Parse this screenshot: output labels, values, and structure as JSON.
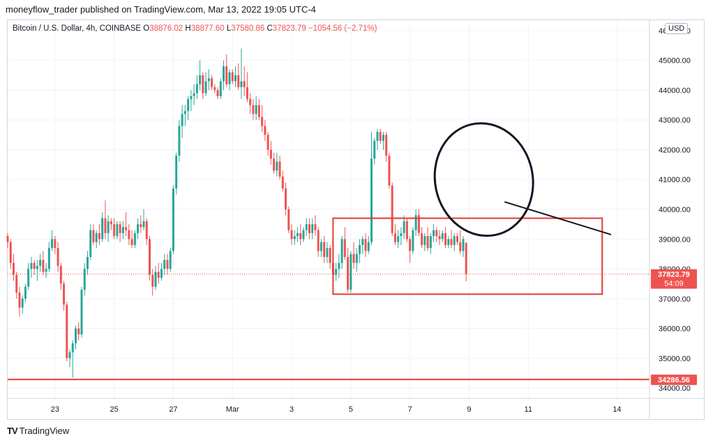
{
  "header": {
    "publisher_text": "moneyflow_trader published on TradingView.com, Mar 13, 2022 19:05 UTC-4"
  },
  "legend": {
    "symbol": "Bitcoin / U.S. Dollar, 4h, COINBASE",
    "open_label": "O",
    "open": "38876.02",
    "high_label": "H",
    "high": "38877.60",
    "low_label": "L",
    "low": "37580.86",
    "close_label": "C",
    "close": "37823.79",
    "change": "−1054.56 (−2.71%)"
  },
  "currency_badge": "USD",
  "footer": {
    "brand_logo": "TV",
    "brand_text": "TradingView"
  },
  "colors": {
    "up": "#26a69a",
    "down": "#ef5350",
    "grid": "#f0f3fa",
    "price_tag": "#ef5350",
    "support_line": "#e53935",
    "annotation": "#131722"
  },
  "chart_data": {
    "type": "candlestick",
    "title": "Bitcoin / U.S. Dollar, 4h, COINBASE",
    "xlabel": "",
    "ylabel": "USD",
    "ylim": [
      33650,
      46350
    ],
    "y_ticks": [
      34000,
      35000,
      36000,
      37000,
      38000,
      39000,
      40000,
      41000,
      42000,
      43000,
      44000,
      45000,
      46000
    ],
    "y_tick_labels": [
      "34000.00",
      "35000.00",
      "36000.00",
      "37000.00",
      "38000.00",
      "39000.00",
      "40000.00",
      "41000.00",
      "42000.00",
      "43000.00",
      "44000.00",
      "45000.00",
      "46000.00"
    ],
    "x_ticks": [
      {
        "label": "23",
        "index": 16
      },
      {
        "label": "25",
        "index": 36
      },
      {
        "label": "27",
        "index": 56
      },
      {
        "label": "Mar",
        "index": 76
      },
      {
        "label": "3",
        "index": 96
      },
      {
        "label": "5",
        "index": 116
      },
      {
        "label": "7",
        "index": 136
      },
      {
        "label": "9",
        "index": 156
      },
      {
        "label": "11",
        "index": 176
      },
      {
        "label": "14",
        "index": 206
      }
    ],
    "candles": [
      [
        39100,
        39200,
        38700,
        38900
      ],
      [
        38900,
        39000,
        38000,
        38200
      ],
      [
        38200,
        38500,
        37600,
        37800
      ],
      [
        37800,
        37900,
        37000,
        37200
      ],
      [
        37200,
        37400,
        36400,
        36700
      ],
      [
        36700,
        37100,
        36500,
        37000
      ],
      [
        37000,
        37500,
        36900,
        37400
      ],
      [
        37400,
        38200,
        37300,
        38000
      ],
      [
        38000,
        38400,
        37700,
        38200
      ],
      [
        38200,
        38300,
        37800,
        38000
      ],
      [
        38000,
        38300,
        37600,
        38100
      ],
      [
        38100,
        38500,
        37900,
        38300
      ],
      [
        38300,
        38600,
        37800,
        37900
      ],
      [
        37900,
        38200,
        37700,
        38000
      ],
      [
        38000,
        38900,
        37900,
        38700
      ],
      [
        38700,
        39300,
        38600,
        39000
      ],
      [
        39000,
        39100,
        38500,
        38700
      ],
      [
        38700,
        38900,
        37900,
        38100
      ],
      [
        38100,
        38200,
        37300,
        37500
      ],
      [
        37500,
        37600,
        36600,
        36800
      ],
      [
        36800,
        36900,
        34900,
        35000
      ],
      [
        35000,
        35300,
        34700,
        35200
      ],
      [
        35200,
        35600,
        34350,
        35500
      ],
      [
        35500,
        36100,
        35300,
        36000
      ],
      [
        36000,
        36200,
        35600,
        35800
      ],
      [
        35800,
        37400,
        35700,
        37300
      ],
      [
        37300,
        38200,
        37100,
        38000
      ],
      [
        38000,
        38600,
        37800,
        38400
      ],
      [
        38400,
        39500,
        38300,
        39300
      ],
      [
        39300,
        39500,
        38800,
        38900
      ],
      [
        38900,
        39300,
        38700,
        39200
      ],
      [
        39200,
        39500,
        38800,
        39000
      ],
      [
        39000,
        39900,
        38900,
        39700
      ],
      [
        39700,
        40300,
        39000,
        39200
      ],
      [
        39200,
        39800,
        38900,
        39600
      ],
      [
        39600,
        39700,
        39300,
        39500
      ],
      [
        39500,
        39700,
        39000,
        39100
      ],
      [
        39100,
        39600,
        39000,
        39500
      ],
      [
        39500,
        39600,
        38900,
        39200
      ],
      [
        39200,
        39600,
        39000,
        39400
      ],
      [
        39400,
        39900,
        39100,
        39300
      ],
      [
        39300,
        39500,
        38800,
        39000
      ],
      [
        39000,
        39300,
        38700,
        38800
      ],
      [
        38800,
        39300,
        38700,
        39200
      ],
      [
        39200,
        39700,
        39000,
        39500
      ],
      [
        39500,
        39800,
        39200,
        39400
      ],
      [
        39400,
        40000,
        39300,
        39600
      ],
      [
        39600,
        39700,
        38800,
        39000
      ],
      [
        39000,
        39100,
        37600,
        37800
      ],
      [
        37800,
        38000,
        37100,
        37400
      ],
      [
        37400,
        38100,
        37300,
        37900
      ],
      [
        37900,
        38200,
        37500,
        37700
      ],
      [
        37700,
        38200,
        37600,
        38000
      ],
      [
        38000,
        38500,
        37800,
        38300
      ],
      [
        38300,
        38500,
        37800,
        38000
      ],
      [
        38000,
        38700,
        37900,
        38600
      ],
      [
        38600,
        40800,
        38500,
        40700
      ],
      [
        40700,
        41900,
        40500,
        41800
      ],
      [
        41800,
        43000,
        41600,
        42800
      ],
      [
        42800,
        43500,
        42400,
        43200
      ],
      [
        43200,
        43500,
        42800,
        43300
      ],
      [
        43300,
        43800,
        43000,
        43700
      ],
      [
        43700,
        44000,
        43300,
        43800
      ],
      [
        43800,
        44200,
        43500,
        43900
      ],
      [
        43900,
        44500,
        43700,
        44200
      ],
      [
        44200,
        45000,
        44000,
        44500
      ],
      [
        44500,
        44600,
        43700,
        43900
      ],
      [
        43900,
        44600,
        43800,
        44300
      ],
      [
        44300,
        44700,
        44000,
        44400
      ],
      [
        44400,
        44500,
        44000,
        44100
      ],
      [
        44100,
        44200,
        43900,
        44000
      ],
      [
        44000,
        44100,
        43700,
        43800
      ],
      [
        43800,
        44400,
        43700,
        44300
      ],
      [
        44300,
        45000,
        44000,
        44800
      ],
      [
        44800,
        45200,
        44100,
        44200
      ],
      [
        44200,
        44700,
        44000,
        44600
      ],
      [
        44600,
        44700,
        44200,
        44300
      ],
      [
        44300,
        44800,
        44100,
        44500
      ],
      [
        44500,
        44900,
        44000,
        44100
      ],
      [
        44100,
        45400,
        43700,
        44300
      ],
      [
        44300,
        44800,
        43800,
        44100
      ],
      [
        44100,
        44600,
        43600,
        43700
      ],
      [
        43700,
        43900,
        43200,
        43500
      ],
      [
        43500,
        43700,
        43000,
        43200
      ],
      [
        43200,
        43800,
        43000,
        43500
      ],
      [
        43500,
        43700,
        43000,
        43100
      ],
      [
        43100,
        43500,
        42600,
        42800
      ],
      [
        42800,
        43000,
        42300,
        42500
      ],
      [
        42500,
        42600,
        41800,
        42000
      ],
      [
        42000,
        42300,
        41500,
        41700
      ],
      [
        41700,
        41900,
        41200,
        41300
      ],
      [
        41300,
        41900,
        41100,
        41600
      ],
      [
        41600,
        41800,
        41000,
        41100
      ],
      [
        41100,
        41300,
        40600,
        40700
      ],
      [
        40700,
        40900,
        39800,
        40000
      ],
      [
        40000,
        40100,
        39200,
        39300
      ],
      [
        39300,
        39500,
        38800,
        39000
      ],
      [
        39000,
        39300,
        38800,
        39100
      ],
      [
        39100,
        39400,
        38900,
        39200
      ],
      [
        39200,
        39500,
        38800,
        39000
      ],
      [
        39000,
        39400,
        38900,
        39300
      ],
      [
        39300,
        39700,
        39100,
        39500
      ],
      [
        39500,
        39700,
        39000,
        39200
      ],
      [
        39200,
        39700,
        39000,
        39500
      ],
      [
        39500,
        39800,
        39100,
        39300
      ],
      [
        39300,
        39400,
        38400,
        38600
      ],
      [
        38600,
        39000,
        38400,
        38900
      ],
      [
        38900,
        39100,
        38200,
        38400
      ],
      [
        38400,
        38900,
        38200,
        38700
      ],
      [
        38700,
        38800,
        38000,
        38200
      ],
      [
        38200,
        38400,
        37600,
        37800
      ],
      [
        37800,
        38200,
        37600,
        38000
      ],
      [
        38000,
        38500,
        37700,
        38200
      ],
      [
        38200,
        39100,
        38000,
        39000
      ],
      [
        39000,
        39400,
        38300,
        38400
      ],
      [
        38400,
        38700,
        37200,
        37300
      ],
      [
        37300,
        38600,
        37200,
        38500
      ],
      [
        38500,
        38900,
        38000,
        38200
      ],
      [
        38200,
        38700,
        37900,
        38500
      ],
      [
        38500,
        39000,
        38200,
        38800
      ],
      [
        38800,
        39100,
        38500,
        39000
      ],
      [
        39000,
        39200,
        38400,
        38600
      ],
      [
        38600,
        39100,
        38500,
        38900
      ],
      [
        38900,
        42600,
        38800,
        41700
      ],
      [
        41700,
        42400,
        41500,
        42300
      ],
      [
        42300,
        42700,
        42000,
        42600
      ],
      [
        42600,
        42700,
        42200,
        42300
      ],
      [
        42300,
        42600,
        42000,
        42500
      ],
      [
        42500,
        42600,
        41600,
        41800
      ],
      [
        41800,
        41900,
        40700,
        40800
      ],
      [
        40800,
        40900,
        39100,
        39200
      ],
      [
        39200,
        39500,
        38800,
        38900
      ],
      [
        38900,
        39300,
        38700,
        39100
      ],
      [
        39100,
        39400,
        38800,
        39200
      ],
      [
        39200,
        39800,
        39000,
        39600
      ],
      [
        39600,
        39700,
        38900,
        39000
      ],
      [
        39000,
        39100,
        38200,
        38600
      ],
      [
        38600,
        39400,
        38500,
        39300
      ],
      [
        39300,
        40000,
        39100,
        39800
      ],
      [
        39800,
        40000,
        39100,
        39200
      ],
      [
        39200,
        39400,
        38700,
        38800
      ],
      [
        38800,
        39200,
        38600,
        39100
      ],
      [
        39100,
        39400,
        38600,
        38700
      ],
      [
        38700,
        39200,
        38500,
        39100
      ],
      [
        39100,
        39500,
        38900,
        39300
      ],
      [
        39300,
        39400,
        38900,
        39100
      ],
      [
        39100,
        39300,
        38800,
        39000
      ],
      [
        39000,
        39300,
        38900,
        39200
      ],
      [
        39200,
        39400,
        38700,
        38800
      ],
      [
        38800,
        39100,
        38700,
        39000
      ],
      [
        39000,
        39300,
        38700,
        38800
      ],
      [
        38800,
        39200,
        38600,
        39100
      ],
      [
        39100,
        39200,
        38800,
        38900
      ],
      [
        38900,
        39300,
        38500,
        38600
      ],
      [
        38600,
        39100,
        38400,
        39000
      ],
      [
        38876.02,
        38877.6,
        37580.86,
        37823.79
      ]
    ],
    "price_lines": [
      {
        "price": 37823.79,
        "label": "37823.79",
        "countdown": "54:09",
        "style": "dotted"
      },
      {
        "price": 34286.56,
        "label": "34286.56",
        "style": "solid"
      }
    ],
    "annotations": [
      {
        "type": "rectangle",
        "x_index_range": [
          110,
          201
        ],
        "price_range": [
          37150,
          39700
        ],
        "color": "#e53935"
      },
      {
        "type": "ellipse",
        "center_index": 161,
        "center_price": 41000,
        "half_width_bars": 16.5,
        "half_height_price": 1900,
        "color": "#131722"
      },
      {
        "type": "trendline",
        "from": {
          "index": 168,
          "price": 40250
        },
        "to": {
          "index": 204,
          "price": 39150
        },
        "color": "#131722"
      }
    ]
  }
}
